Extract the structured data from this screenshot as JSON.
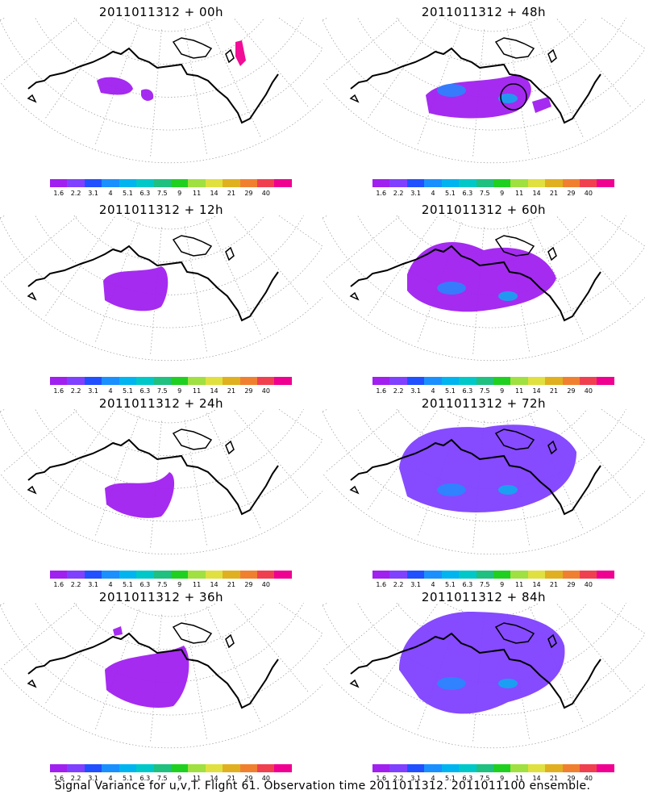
{
  "figure": {
    "footer": "Signal Variance for u,v,T. Flight 61. Observation time 2011011312. 2011011100 ensemble."
  },
  "colorbar": {
    "labels": [
      "1.6",
      "2.2",
      "3.1",
      "4",
      "5.1",
      "6.3",
      "7.5",
      "9",
      "11",
      "14",
      "21",
      "29",
      "40"
    ],
    "colors": [
      "#a020f0",
      "#8040ff",
      "#2050ff",
      "#1a90ff",
      "#00b4f0",
      "#00c8c8",
      "#20c080",
      "#20d020",
      "#a0e040",
      "#e0e040",
      "#e0b020",
      "#f08030",
      "#f04050",
      "#f00090"
    ]
  },
  "panels": [
    {
      "title": "2011011312 + 00h",
      "lead_hours": 0,
      "column": "left",
      "row": 0
    },
    {
      "title": "2011011312 + 48h",
      "lead_hours": 48,
      "column": "right",
      "row": 0
    },
    {
      "title": "2011011312 + 12h",
      "lead_hours": 12,
      "column": "left",
      "row": 1
    },
    {
      "title": "2011011312 + 60h",
      "lead_hours": 60,
      "column": "right",
      "row": 1
    },
    {
      "title": "2011011312 + 24h",
      "lead_hours": 24,
      "column": "left",
      "row": 2
    },
    {
      "title": "2011011312 + 72h",
      "lead_hours": 72,
      "column": "right",
      "row": 2
    },
    {
      "title": "2011011312 + 36h",
      "lead_hours": 36,
      "column": "left",
      "row": 3
    },
    {
      "title": "2011011312 + 84h",
      "lead_hours": 84,
      "column": "right",
      "row": 3
    }
  ]
}
